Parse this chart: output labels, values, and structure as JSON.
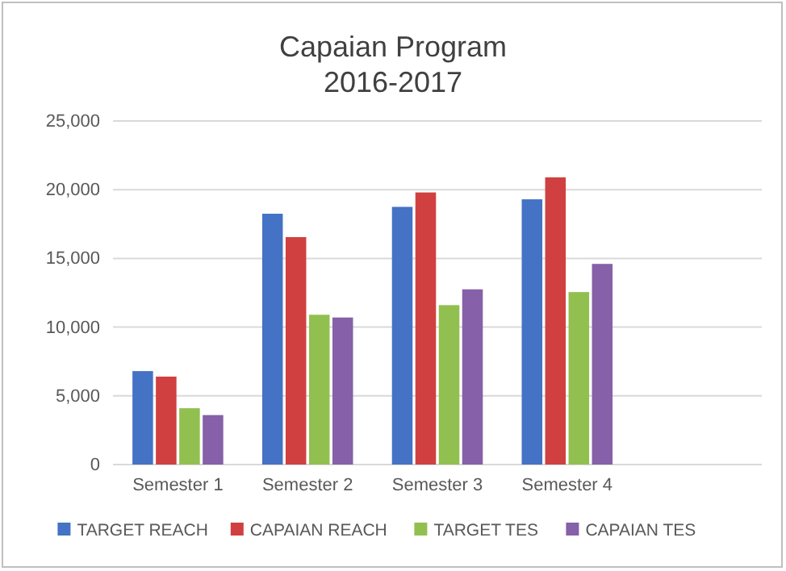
{
  "chart_data": {
    "type": "bar",
    "title": "Capaian Program\n2016-2017",
    "categories": [
      "Semester 1",
      "Semester 2",
      "Semester 3",
      "Semester 4",
      null
    ],
    "series": [
      {
        "name": "TARGET REACH",
        "color": "#4472c4",
        "values": [
          6800,
          18250,
          18750,
          19300,
          null
        ]
      },
      {
        "name": "CAPAIAN REACH",
        "color": "#d04040",
        "values": [
          6400,
          16550,
          19800,
          20900,
          null
        ]
      },
      {
        "name": "TARGET TES",
        "color": "#92c050",
        "values": [
          4100,
          10900,
          11600,
          12550,
          null
        ]
      },
      {
        "name": "CAPAIAN TES",
        "color": "#8660a8",
        "values": [
          3600,
          10700,
          12750,
          14600,
          null
        ]
      }
    ],
    "ylim": [
      0,
      25000
    ],
    "yticks": [
      {
        "value": 0,
        "label": "0"
      },
      {
        "value": 5000,
        "label": "5,000"
      },
      {
        "value": 10000,
        "label": "10,000"
      },
      {
        "value": 15000,
        "label": "15,000"
      },
      {
        "value": 20000,
        "label": "20,000"
      },
      {
        "value": 25000,
        "label": "25,000"
      }
    ],
    "grid": "y",
    "legend": "bottom"
  }
}
